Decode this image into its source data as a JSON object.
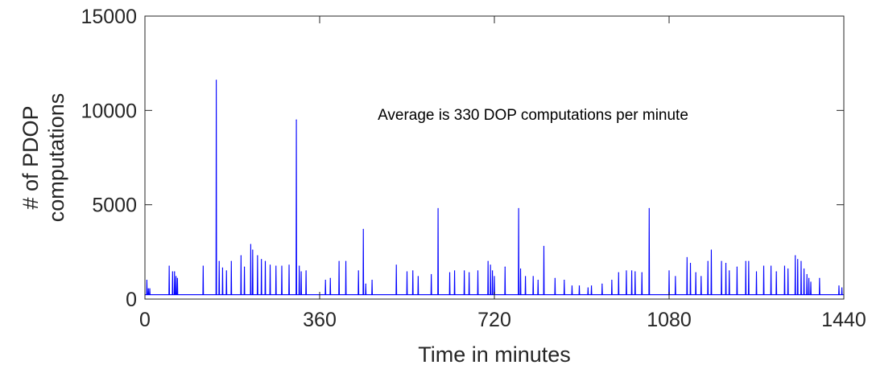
{
  "chart_data": {
    "type": "line",
    "title": "",
    "xlabel": "Time in minutes",
    "ylabel": [
      "# of PDOP",
      "computations"
    ],
    "xlim": [
      0,
      1440
    ],
    "ylim": [
      0,
      15000
    ],
    "xticks": [
      0,
      360,
      720,
      1080,
      1440
    ],
    "yticks": [
      0,
      5000,
      10000,
      15000
    ],
    "grid": false,
    "legend": "none",
    "annotation": "Average is 330 DOP computations per minute",
    "series": [
      {
        "color": "#0000ff",
        "baseline": 230,
        "peaks": [
          [
            4,
            1000
          ],
          [
            7,
            550
          ],
          [
            10,
            550
          ],
          [
            50,
            1750
          ],
          [
            57,
            1450
          ],
          [
            61,
            1450
          ],
          [
            64,
            1200
          ],
          [
            67,
            1100
          ],
          [
            120,
            1750
          ],
          [
            147,
            11600
          ],
          [
            153,
            2000
          ],
          [
            160,
            1650
          ],
          [
            168,
            1500
          ],
          [
            178,
            2000
          ],
          [
            198,
            2300
          ],
          [
            205,
            1700
          ],
          [
            218,
            2900
          ],
          [
            222,
            2600
          ],
          [
            232,
            2300
          ],
          [
            240,
            2100
          ],
          [
            248,
            2000
          ],
          [
            258,
            1800
          ],
          [
            270,
            1750
          ],
          [
            282,
            1750
          ],
          [
            297,
            1800
          ],
          [
            312,
            9500
          ],
          [
            318,
            1750
          ],
          [
            322,
            1450
          ],
          [
            332,
            1500
          ],
          [
            372,
            1000
          ],
          [
            382,
            1100
          ],
          [
            400,
            2000
          ],
          [
            414,
            2000
          ],
          [
            440,
            1500
          ],
          [
            450,
            3700
          ],
          [
            455,
            800
          ],
          [
            468,
            1000
          ],
          [
            518,
            1800
          ],
          [
            540,
            1450
          ],
          [
            552,
            1500
          ],
          [
            563,
            1200
          ],
          [
            590,
            1300
          ],
          [
            604,
            4800
          ],
          [
            628,
            1400
          ],
          [
            638,
            1500
          ],
          [
            658,
            1500
          ],
          [
            668,
            1400
          ],
          [
            686,
            1500
          ],
          [
            707,
            2000
          ],
          [
            712,
            1800
          ],
          [
            716,
            1500
          ],
          [
            720,
            1200
          ],
          [
            742,
            1700
          ],
          [
            770,
            4800
          ],
          [
            774,
            1600
          ],
          [
            784,
            1200
          ],
          [
            800,
            1200
          ],
          [
            810,
            1000
          ],
          [
            822,
            2800
          ],
          [
            845,
            1100
          ],
          [
            864,
            1000
          ],
          [
            880,
            700
          ],
          [
            895,
            700
          ],
          [
            913,
            600
          ],
          [
            920,
            700
          ],
          [
            942,
            800
          ],
          [
            962,
            1000
          ],
          [
            976,
            1400
          ],
          [
            992,
            1500
          ],
          [
            1003,
            1500
          ],
          [
            1010,
            1450
          ],
          [
            1024,
            1400
          ],
          [
            1039,
            4800
          ],
          [
            1080,
            1500
          ],
          [
            1093,
            1200
          ],
          [
            1117,
            2200
          ],
          [
            1124,
            1900
          ],
          [
            1135,
            1400
          ],
          [
            1146,
            1200
          ],
          [
            1160,
            2000
          ],
          [
            1167,
            2600
          ],
          [
            1188,
            2000
          ],
          [
            1197,
            1900
          ],
          [
            1204,
            1500
          ],
          [
            1220,
            1700
          ],
          [
            1238,
            2000
          ],
          [
            1244,
            2000
          ],
          [
            1260,
            1450
          ],
          [
            1275,
            1750
          ],
          [
            1290,
            1750
          ],
          [
            1301,
            1450
          ],
          [
            1318,
            1750
          ],
          [
            1325,
            1600
          ],
          [
            1340,
            2300
          ],
          [
            1345,
            2100
          ],
          [
            1352,
            2000
          ],
          [
            1358,
            1600
          ],
          [
            1364,
            1300
          ],
          [
            1368,
            1100
          ],
          [
            1372,
            900
          ],
          [
            1390,
            1100
          ],
          [
            1430,
            700
          ],
          [
            1436,
            600
          ]
        ]
      }
    ]
  }
}
